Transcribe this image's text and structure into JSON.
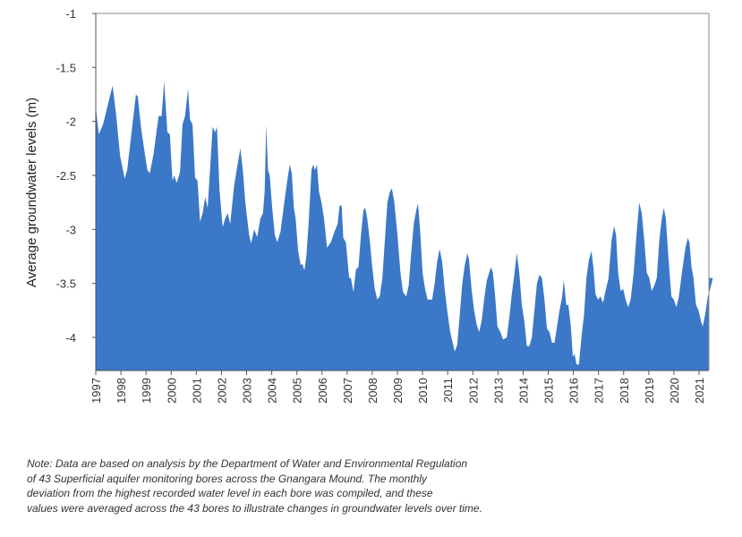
{
  "chart_data": {
    "type": "area",
    "title": "",
    "xlabel": "",
    "ylabel": "Average groundwater levels (m)",
    "ylim": [
      -4.3,
      -1
    ],
    "xlim": [
      1997,
      2021.58
    ],
    "yticks": [
      -1,
      -1.5,
      -2,
      -2.5,
      -3,
      -3.5,
      -4
    ],
    "ytick_labels": [
      "-1",
      "-1.5",
      "-2",
      "-2.5",
      "-3",
      "-3.5",
      "-4"
    ],
    "xticks": [
      1997,
      1998,
      1999,
      2000,
      2001,
      2002,
      2003,
      2004,
      2005,
      2006,
      2007,
      2008,
      2009,
      2010,
      2011,
      2012,
      2013,
      2014,
      2015,
      2016,
      2017,
      2018,
      2019,
      2020,
      2021
    ],
    "xtick_labels": [
      "1997",
      "1998",
      "1999",
      "2000",
      "2001",
      "2002",
      "2003",
      "2004",
      "2005",
      "2006",
      "2007",
      "2008",
      "2009",
      "2010",
      "2011",
      "2012",
      "2013",
      "2014",
      "2015",
      "2016",
      "2017",
      "2018",
      "2019",
      "2020",
      "2021"
    ],
    "grid": false,
    "legend": "none",
    "fill_color": "#3b78c7",
    "series": [
      {
        "points": [
          [
            1997.0,
            -1.87
          ],
          [
            1997.12,
            -2.12
          ],
          [
            1997.3,
            -2.02
          ],
          [
            1997.55,
            -1.78
          ],
          [
            1997.67,
            -1.67
          ],
          [
            1997.8,
            -1.92
          ],
          [
            1997.97,
            -2.32
          ],
          [
            1998.15,
            -2.53
          ],
          [
            1998.25,
            -2.45
          ],
          [
            1998.45,
            -2.05
          ],
          [
            1998.6,
            -1.75
          ],
          [
            1998.67,
            -1.77
          ],
          [
            1998.8,
            -2.05
          ],
          [
            1998.95,
            -2.3
          ],
          [
            1999.05,
            -2.45
          ],
          [
            1999.15,
            -2.48
          ],
          [
            1999.3,
            -2.3
          ],
          [
            1999.5,
            -1.95
          ],
          [
            1999.62,
            -1.95
          ],
          [
            1999.72,
            -1.63
          ],
          [
            1999.85,
            -2.1
          ],
          [
            1999.95,
            -2.12
          ],
          [
            2000.05,
            -2.55
          ],
          [
            2000.12,
            -2.5
          ],
          [
            2000.22,
            -2.57
          ],
          [
            2000.35,
            -2.47
          ],
          [
            2000.45,
            -2.03
          ],
          [
            2000.55,
            -1.95
          ],
          [
            2000.67,
            -1.7
          ],
          [
            2000.75,
            -1.98
          ],
          [
            2000.85,
            -2.03
          ],
          [
            2000.95,
            -2.52
          ],
          [
            2001.05,
            -2.55
          ],
          [
            2001.15,
            -2.93
          ],
          [
            2001.25,
            -2.85
          ],
          [
            2001.35,
            -2.7
          ],
          [
            2001.45,
            -2.8
          ],
          [
            2001.55,
            -2.43
          ],
          [
            2001.65,
            -2.05
          ],
          [
            2001.75,
            -2.1
          ],
          [
            2001.82,
            -2.05
          ],
          [
            2001.92,
            -2.63
          ],
          [
            2002.05,
            -2.98
          ],
          [
            2002.15,
            -2.9
          ],
          [
            2002.25,
            -2.85
          ],
          [
            2002.35,
            -2.95
          ],
          [
            2002.5,
            -2.6
          ],
          [
            2002.62,
            -2.43
          ],
          [
            2002.75,
            -2.25
          ],
          [
            2002.85,
            -2.45
          ],
          [
            2002.95,
            -2.75
          ],
          [
            2003.1,
            -3.05
          ],
          [
            2003.18,
            -3.13
          ],
          [
            2003.3,
            -3.0
          ],
          [
            2003.42,
            -3.07
          ],
          [
            2003.55,
            -2.9
          ],
          [
            2003.65,
            -2.85
          ],
          [
            2003.72,
            -2.65
          ],
          [
            2003.78,
            -2.03
          ],
          [
            2003.85,
            -2.45
          ],
          [
            2003.92,
            -2.5
          ],
          [
            2004.02,
            -2.8
          ],
          [
            2004.12,
            -3.05
          ],
          [
            2004.22,
            -3.12
          ],
          [
            2004.35,
            -3.02
          ],
          [
            2004.5,
            -2.75
          ],
          [
            2004.65,
            -2.5
          ],
          [
            2004.72,
            -2.4
          ],
          [
            2004.8,
            -2.48
          ],
          [
            2004.88,
            -2.8
          ],
          [
            2004.95,
            -2.9
          ],
          [
            2005.05,
            -3.2
          ],
          [
            2005.15,
            -3.33
          ],
          [
            2005.22,
            -3.32
          ],
          [
            2005.3,
            -3.38
          ],
          [
            2005.38,
            -3.25
          ],
          [
            2005.48,
            -2.9
          ],
          [
            2005.58,
            -2.45
          ],
          [
            2005.65,
            -2.4
          ],
          [
            2005.72,
            -2.45
          ],
          [
            2005.8,
            -2.4
          ],
          [
            2005.88,
            -2.65
          ],
          [
            2005.98,
            -2.75
          ],
          [
            2006.08,
            -2.9
          ],
          [
            2006.2,
            -3.17
          ],
          [
            2006.35,
            -3.12
          ],
          [
            2006.5,
            -3.02
          ],
          [
            2006.62,
            -2.95
          ],
          [
            2006.7,
            -2.78
          ],
          [
            2006.78,
            -2.78
          ],
          [
            2006.85,
            -3.08
          ],
          [
            2006.95,
            -3.12
          ],
          [
            2007.08,
            -3.45
          ],
          [
            2007.15,
            -3.45
          ],
          [
            2007.25,
            -3.58
          ],
          [
            2007.35,
            -3.37
          ],
          [
            2007.45,
            -3.35
          ],
          [
            2007.55,
            -3.05
          ],
          [
            2007.65,
            -2.82
          ],
          [
            2007.72,
            -2.8
          ],
          [
            2007.8,
            -2.9
          ],
          [
            2007.9,
            -3.1
          ],
          [
            2008.0,
            -3.35
          ],
          [
            2008.1,
            -3.55
          ],
          [
            2008.2,
            -3.65
          ],
          [
            2008.3,
            -3.62
          ],
          [
            2008.4,
            -3.45
          ],
          [
            2008.5,
            -3.1
          ],
          [
            2008.6,
            -2.75
          ],
          [
            2008.7,
            -2.65
          ],
          [
            2008.78,
            -2.62
          ],
          [
            2008.88,
            -2.75
          ],
          [
            2009.0,
            -3.05
          ],
          [
            2009.12,
            -3.4
          ],
          [
            2009.22,
            -3.58
          ],
          [
            2009.35,
            -3.62
          ],
          [
            2009.45,
            -3.52
          ],
          [
            2009.55,
            -3.22
          ],
          [
            2009.65,
            -2.95
          ],
          [
            2009.75,
            -2.82
          ],
          [
            2009.82,
            -2.76
          ],
          [
            2009.9,
            -3.0
          ],
          [
            2010.0,
            -3.4
          ],
          [
            2010.1,
            -3.55
          ],
          [
            2010.2,
            -3.65
          ],
          [
            2010.38,
            -3.65
          ],
          [
            2010.48,
            -3.5
          ],
          [
            2010.58,
            -3.3
          ],
          [
            2010.68,
            -3.18
          ],
          [
            2010.78,
            -3.3
          ],
          [
            2010.88,
            -3.55
          ],
          [
            2010.98,
            -3.75
          ],
          [
            2011.1,
            -3.95
          ],
          [
            2011.2,
            -4.05
          ],
          [
            2011.28,
            -4.13
          ],
          [
            2011.38,
            -4.07
          ],
          [
            2011.48,
            -3.8
          ],
          [
            2011.58,
            -3.5
          ],
          [
            2011.68,
            -3.33
          ],
          [
            2011.78,
            -3.22
          ],
          [
            2011.85,
            -3.28
          ],
          [
            2011.95,
            -3.55
          ],
          [
            2012.05,
            -3.75
          ],
          [
            2012.15,
            -3.88
          ],
          [
            2012.25,
            -3.95
          ],
          [
            2012.35,
            -3.85
          ],
          [
            2012.45,
            -3.65
          ],
          [
            2012.55,
            -3.48
          ],
          [
            2012.65,
            -3.4
          ],
          [
            2012.72,
            -3.35
          ],
          [
            2012.8,
            -3.4
          ],
          [
            2012.88,
            -3.6
          ],
          [
            2012.98,
            -3.9
          ],
          [
            2013.1,
            -3.95
          ],
          [
            2013.2,
            -4.02
          ],
          [
            2013.35,
            -4.0
          ],
          [
            2013.45,
            -3.82
          ],
          [
            2013.55,
            -3.6
          ],
          [
            2013.65,
            -3.42
          ],
          [
            2013.75,
            -3.22
          ],
          [
            2013.85,
            -3.4
          ],
          [
            2013.95,
            -3.7
          ],
          [
            2014.05,
            -3.85
          ],
          [
            2014.15,
            -4.08
          ],
          [
            2014.25,
            -4.08
          ],
          [
            2014.35,
            -4.0
          ],
          [
            2014.45,
            -3.75
          ],
          [
            2014.55,
            -3.5
          ],
          [
            2014.65,
            -3.42
          ],
          [
            2014.75,
            -3.45
          ],
          [
            2014.85,
            -3.65
          ],
          [
            2014.95,
            -3.92
          ],
          [
            2015.05,
            -3.95
          ],
          [
            2015.15,
            -4.05
          ],
          [
            2015.25,
            -4.05
          ],
          [
            2015.35,
            -3.9
          ],
          [
            2015.45,
            -3.75
          ],
          [
            2015.55,
            -3.63
          ],
          [
            2015.62,
            -3.47
          ],
          [
            2015.72,
            -3.7
          ],
          [
            2015.8,
            -3.7
          ],
          [
            2015.9,
            -3.9
          ],
          [
            2015.98,
            -4.18
          ],
          [
            2016.05,
            -4.15
          ],
          [
            2016.12,
            -4.25
          ],
          [
            2016.22,
            -4.25
          ],
          [
            2016.32,
            -4.0
          ],
          [
            2016.42,
            -3.8
          ],
          [
            2016.52,
            -3.45
          ],
          [
            2016.62,
            -3.28
          ],
          [
            2016.72,
            -3.2
          ],
          [
            2016.8,
            -3.35
          ],
          [
            2016.88,
            -3.6
          ],
          [
            2016.98,
            -3.65
          ],
          [
            2017.08,
            -3.62
          ],
          [
            2017.18,
            -3.68
          ],
          [
            2017.28,
            -3.57
          ],
          [
            2017.4,
            -3.45
          ],
          [
            2017.52,
            -3.1
          ],
          [
            2017.62,
            -2.97
          ],
          [
            2017.7,
            -3.05
          ],
          [
            2017.78,
            -3.4
          ],
          [
            2017.88,
            -3.57
          ],
          [
            2017.98,
            -3.55
          ],
          [
            2018.08,
            -3.65
          ],
          [
            2018.18,
            -3.72
          ],
          [
            2018.28,
            -3.65
          ],
          [
            2018.4,
            -3.4
          ],
          [
            2018.52,
            -3.02
          ],
          [
            2018.62,
            -2.75
          ],
          [
            2018.72,
            -2.85
          ],
          [
            2018.82,
            -3.1
          ],
          [
            2018.92,
            -3.4
          ],
          [
            2019.02,
            -3.45
          ],
          [
            2019.12,
            -3.57
          ],
          [
            2019.22,
            -3.52
          ],
          [
            2019.32,
            -3.45
          ],
          [
            2019.42,
            -3.1
          ],
          [
            2019.52,
            -2.9
          ],
          [
            2019.6,
            -2.8
          ],
          [
            2019.68,
            -2.9
          ],
          [
            2019.78,
            -3.25
          ],
          [
            2019.9,
            -3.62
          ],
          [
            2020.0,
            -3.65
          ],
          [
            2020.1,
            -3.72
          ],
          [
            2020.2,
            -3.62
          ],
          [
            2020.32,
            -3.4
          ],
          [
            2020.45,
            -3.18
          ],
          [
            2020.55,
            -3.08
          ],
          [
            2020.62,
            -3.12
          ],
          [
            2020.7,
            -3.35
          ],
          [
            2020.78,
            -3.45
          ],
          [
            2020.88,
            -3.7
          ],
          [
            2020.98,
            -3.75
          ],
          [
            2021.08,
            -3.85
          ],
          [
            2021.15,
            -3.9
          ],
          [
            2021.25,
            -3.78
          ],
          [
            2021.35,
            -3.62
          ],
          [
            2021.45,
            -3.55
          ],
          [
            2021.55,
            -3.45
          ]
        ]
      }
    ]
  },
  "note": {
    "line1": "Note: Data are based on analysis by the Department of Water and Environmental Regulation",
    "line2": "of 43 Superficial aquifer monitoring bores across the Gnangara Mound. The monthly",
    "line3": "deviation from the highest recorded water level in each bore was compiled, and these",
    "line4": "values were averaged across the 43 bores to illustrate changes in groundwater levels over time."
  }
}
